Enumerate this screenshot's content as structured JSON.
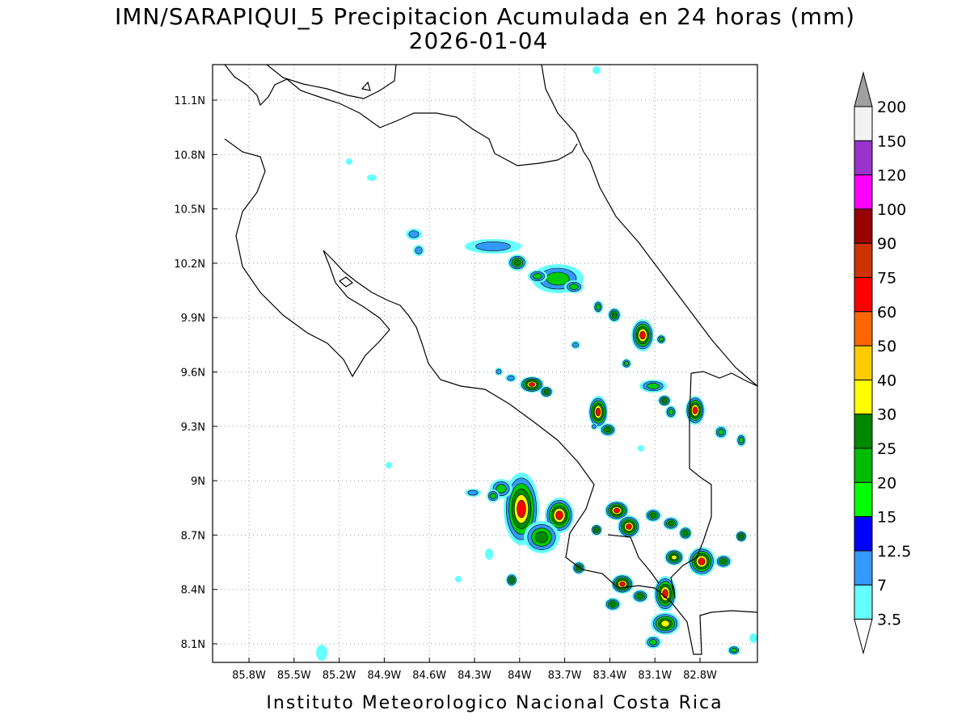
{
  "title": "IMN/SARAPIQUI_5 Precipitacion Acumulada en 24 horas (mm)",
  "subtitle": "2026-01-04",
  "x_ticks": [
    "85.8W",
    "85.5W",
    "85.2W",
    "84.9W",
    "84.6W",
    "84.3W",
    "84W",
    "83.7W",
    "83.4W",
    "83.1W",
    "82.8W"
  ],
  "y_ticks": [
    "11.1N",
    "10.8N",
    "10.5N",
    "10.2N",
    "9.9N",
    "9.6N",
    "9.3N",
    "9N",
    "8.7N",
    "8.4N",
    "8.1N"
  ],
  "colorbar": {
    "labels": [
      "200",
      "150",
      "120",
      "100",
      "90",
      "75",
      "60",
      "50",
      "40",
      "30",
      "25",
      "20",
      "15",
      "12.5",
      "7",
      "3.5"
    ],
    "colors": [
      "#f2f2f2",
      "#9933cc",
      "#ff00ff",
      "#990000",
      "#cc3300",
      "#ff0000",
      "#ff6600",
      "#ffcc00",
      "#ffff00",
      "#008800",
      "#00bb00",
      "#00ff00",
      "#0000ff",
      "#3399ff",
      "#66ffff"
    ],
    "above_color": "#a0a0a0",
    "below_color": "#ffffff"
  },
  "credit": "Instituto Meteorologico Nacional Costa Rica"
}
